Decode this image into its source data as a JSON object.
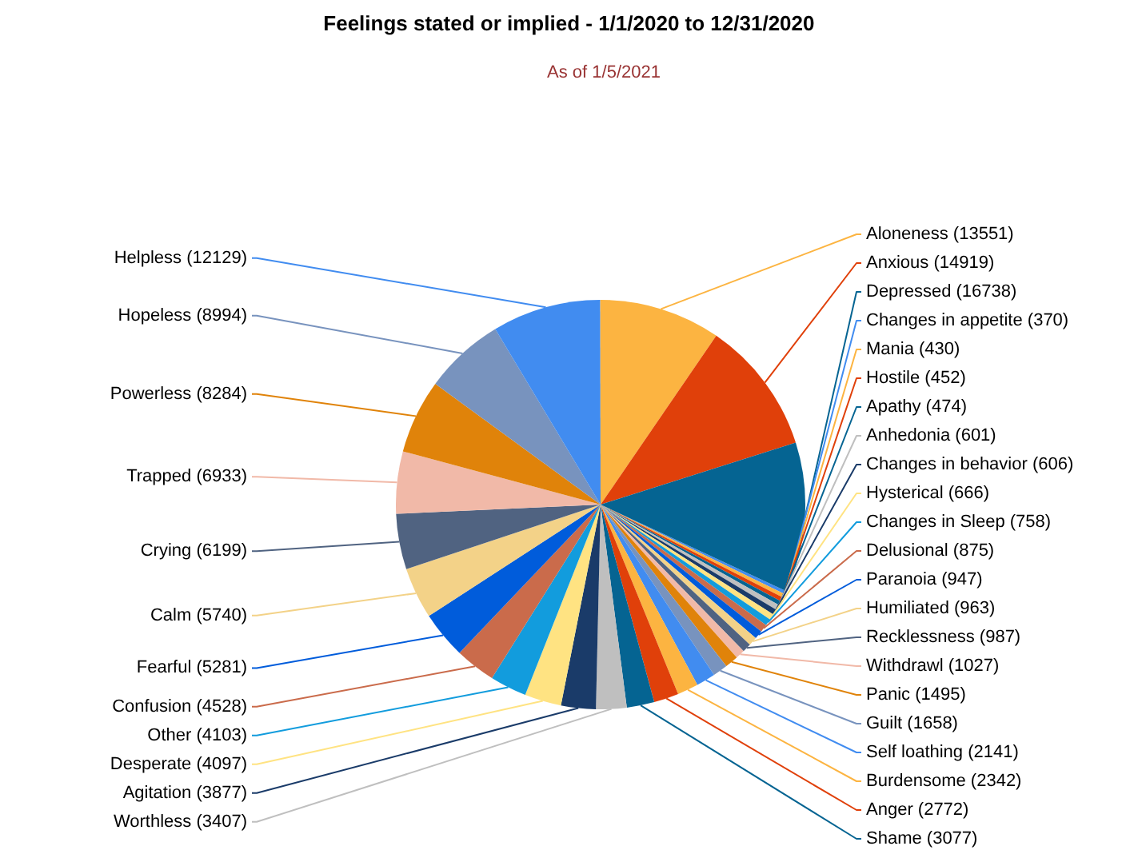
{
  "chart_data": {
    "type": "pie",
    "title": "Feelings stated or implied  - 1/1/2020 to 12/31/2020",
    "subtitle": "As of 1/5/2021",
    "categories": [
      "Changes in appetite",
      "Mania",
      "Hostile",
      "Apathy",
      "Anhedonia",
      "Changes in behavior",
      "Hysterical",
      "Changes in Sleep",
      "Delusional",
      "Paranoia",
      "Humiliated",
      "Recklessness",
      "Withdrawl",
      "Panic",
      "Guilt",
      "Self loathing",
      "Burdensome",
      "Anger",
      "Shame",
      "Worthless",
      "Agitation",
      "Desperate",
      "Other",
      "Confusion",
      "Fearful",
      "Calm",
      "Crying",
      "Trapped",
      "Powerless",
      "Hopeless",
      "Helpless",
      "Aloneness",
      "Anxious",
      "Depressed"
    ],
    "values": [
      370,
      430,
      452,
      474,
      601,
      606,
      666,
      758,
      875,
      947,
      963,
      987,
      1027,
      1495,
      1658,
      2141,
      2342,
      2772,
      3077,
      3407,
      3877,
      4097,
      4103,
      4528,
      5281,
      5740,
      6199,
      6933,
      8284,
      8994,
      12129,
      13551,
      14919,
      16738
    ],
    "colors": [
      "#418cf0",
      "#fcb441",
      "#e0400a",
      "#056492",
      "#bfbfbf",
      "#1a3b69",
      "#ffe382",
      "#129cdd",
      "#ca6b4b",
      "#005cdb",
      "#f3d288",
      "#506381",
      "#f1b9a8",
      "#e0830a",
      "#7893be",
      "#418cf0",
      "#fcb441",
      "#e0400a",
      "#056492",
      "#bfbfbf",
      "#1a3b69",
      "#ffe382",
      "#129cdd",
      "#ca6b4b",
      "#005cdb",
      "#f3d288",
      "#506381",
      "#f1b9a8",
      "#e0830a",
      "#7893be",
      "#418cf0",
      "#fcb441",
      "#e0400a",
      "#056492"
    ],
    "value_labels": [
      "(370)",
      "(430)",
      "(452)",
      "(474)",
      "(601)",
      "(606)",
      "(666)",
      "(758)",
      "(875)",
      "(947)",
      "(963)",
      "(987)",
      "(1027)",
      "(1495)",
      "(1658)",
      "(2141)",
      "(2342)",
      "(2772)",
      "(3077)",
      "(3407)",
      "(3877)",
      "(4097)",
      "(4103)",
      "(4528)",
      "(5281)",
      "(5740)",
      "(6199)",
      "(6933)",
      "(8284)",
      "(8994)",
      "(12129)",
      "(13551)",
      "(14919)",
      "(16738)"
    ]
  }
}
